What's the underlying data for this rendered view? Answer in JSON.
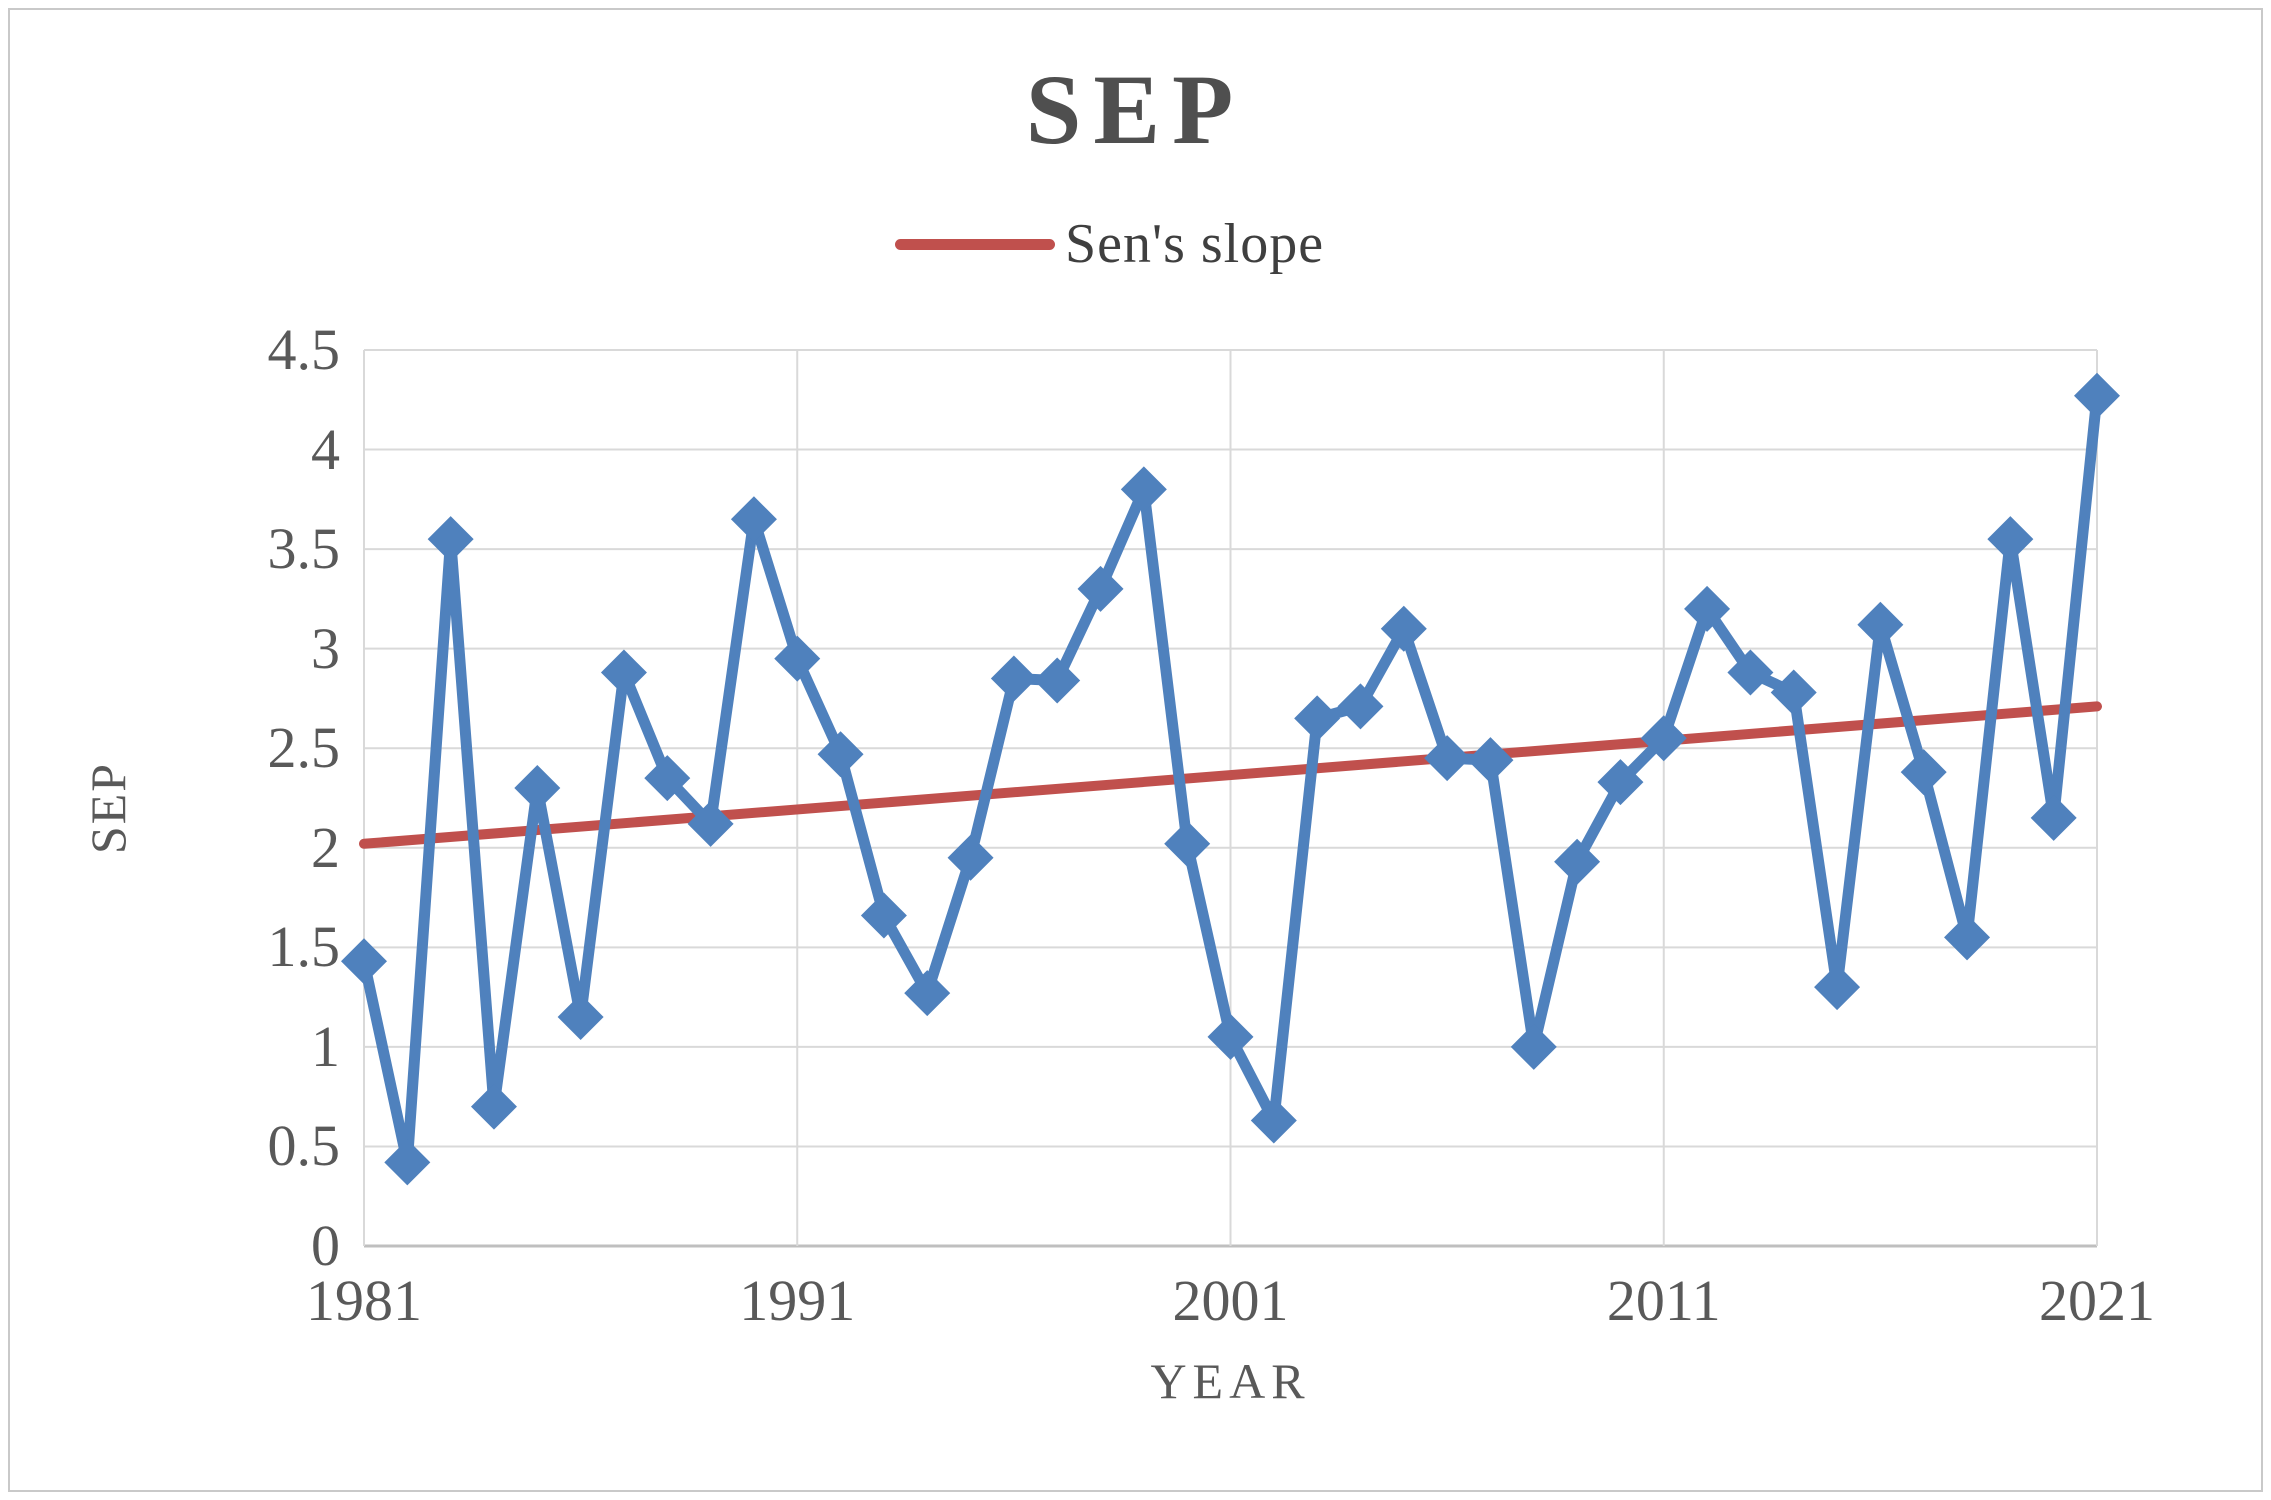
{
  "figure": {
    "border_color": "#c9c9c9",
    "background": "#ffffff"
  },
  "legend": {
    "label": "Sen's slope",
    "line_color": "#c0504d"
  },
  "colors": {
    "series_blue": "#4f81bd",
    "trend_red": "#c0504d",
    "gridline": "#d9d9d9",
    "axis_line": "#bfbfbf",
    "tick_text": "#595959",
    "title_text": "#4f4f4f"
  },
  "chart_data": {
    "type": "line",
    "title": "SEP",
    "xlabel": "YEAR",
    "ylabel": "SEP",
    "ylim": [
      0,
      4.5
    ],
    "grid": true,
    "legend_position": "top",
    "x": [
      1981,
      1982,
      1983,
      1984,
      1985,
      1986,
      1987,
      1988,
      1989,
      1990,
      1991,
      1992,
      1993,
      1994,
      1995,
      1996,
      1997,
      1998,
      1999,
      2000,
      2001,
      2002,
      2003,
      2004,
      2005,
      2006,
      2007,
      2008,
      2009,
      2010,
      2011,
      2012,
      2013,
      2014,
      2015,
      2016,
      2017,
      2018,
      2019,
      2020,
      2021
    ],
    "series": [
      {
        "name": "SEP",
        "color": "#4f81bd",
        "marker": "diamond",
        "values": [
          1.43,
          0.42,
          3.55,
          0.7,
          2.3,
          1.15,
          2.88,
          2.35,
          2.12,
          3.65,
          2.95,
          2.47,
          1.66,
          1.27,
          1.95,
          2.85,
          2.84,
          3.3,
          3.8,
          2.02,
          1.05,
          0.63,
          2.65,
          2.71,
          3.1,
          2.45,
          2.44,
          1.0,
          1.93,
          2.33,
          2.55,
          3.2,
          2.88,
          2.78,
          1.3,
          3.12,
          2.38,
          1.55,
          3.55,
          2.15,
          4.27
        ]
      },
      {
        "name": "Sen's slope",
        "color": "#c0504d",
        "type": "trend",
        "x_endpoints": [
          1981,
          2021
        ],
        "endpoints": [
          2.02,
          2.71
        ]
      }
    ],
    "y_ticks": [
      "4.5",
      "4",
      "3.5",
      "3",
      "2.5",
      "2",
      "1.5",
      "1",
      "0.5",
      "0"
    ],
    "x_ticks": [
      "1981",
      "1991",
      "2001",
      "2011",
      "2021"
    ]
  }
}
